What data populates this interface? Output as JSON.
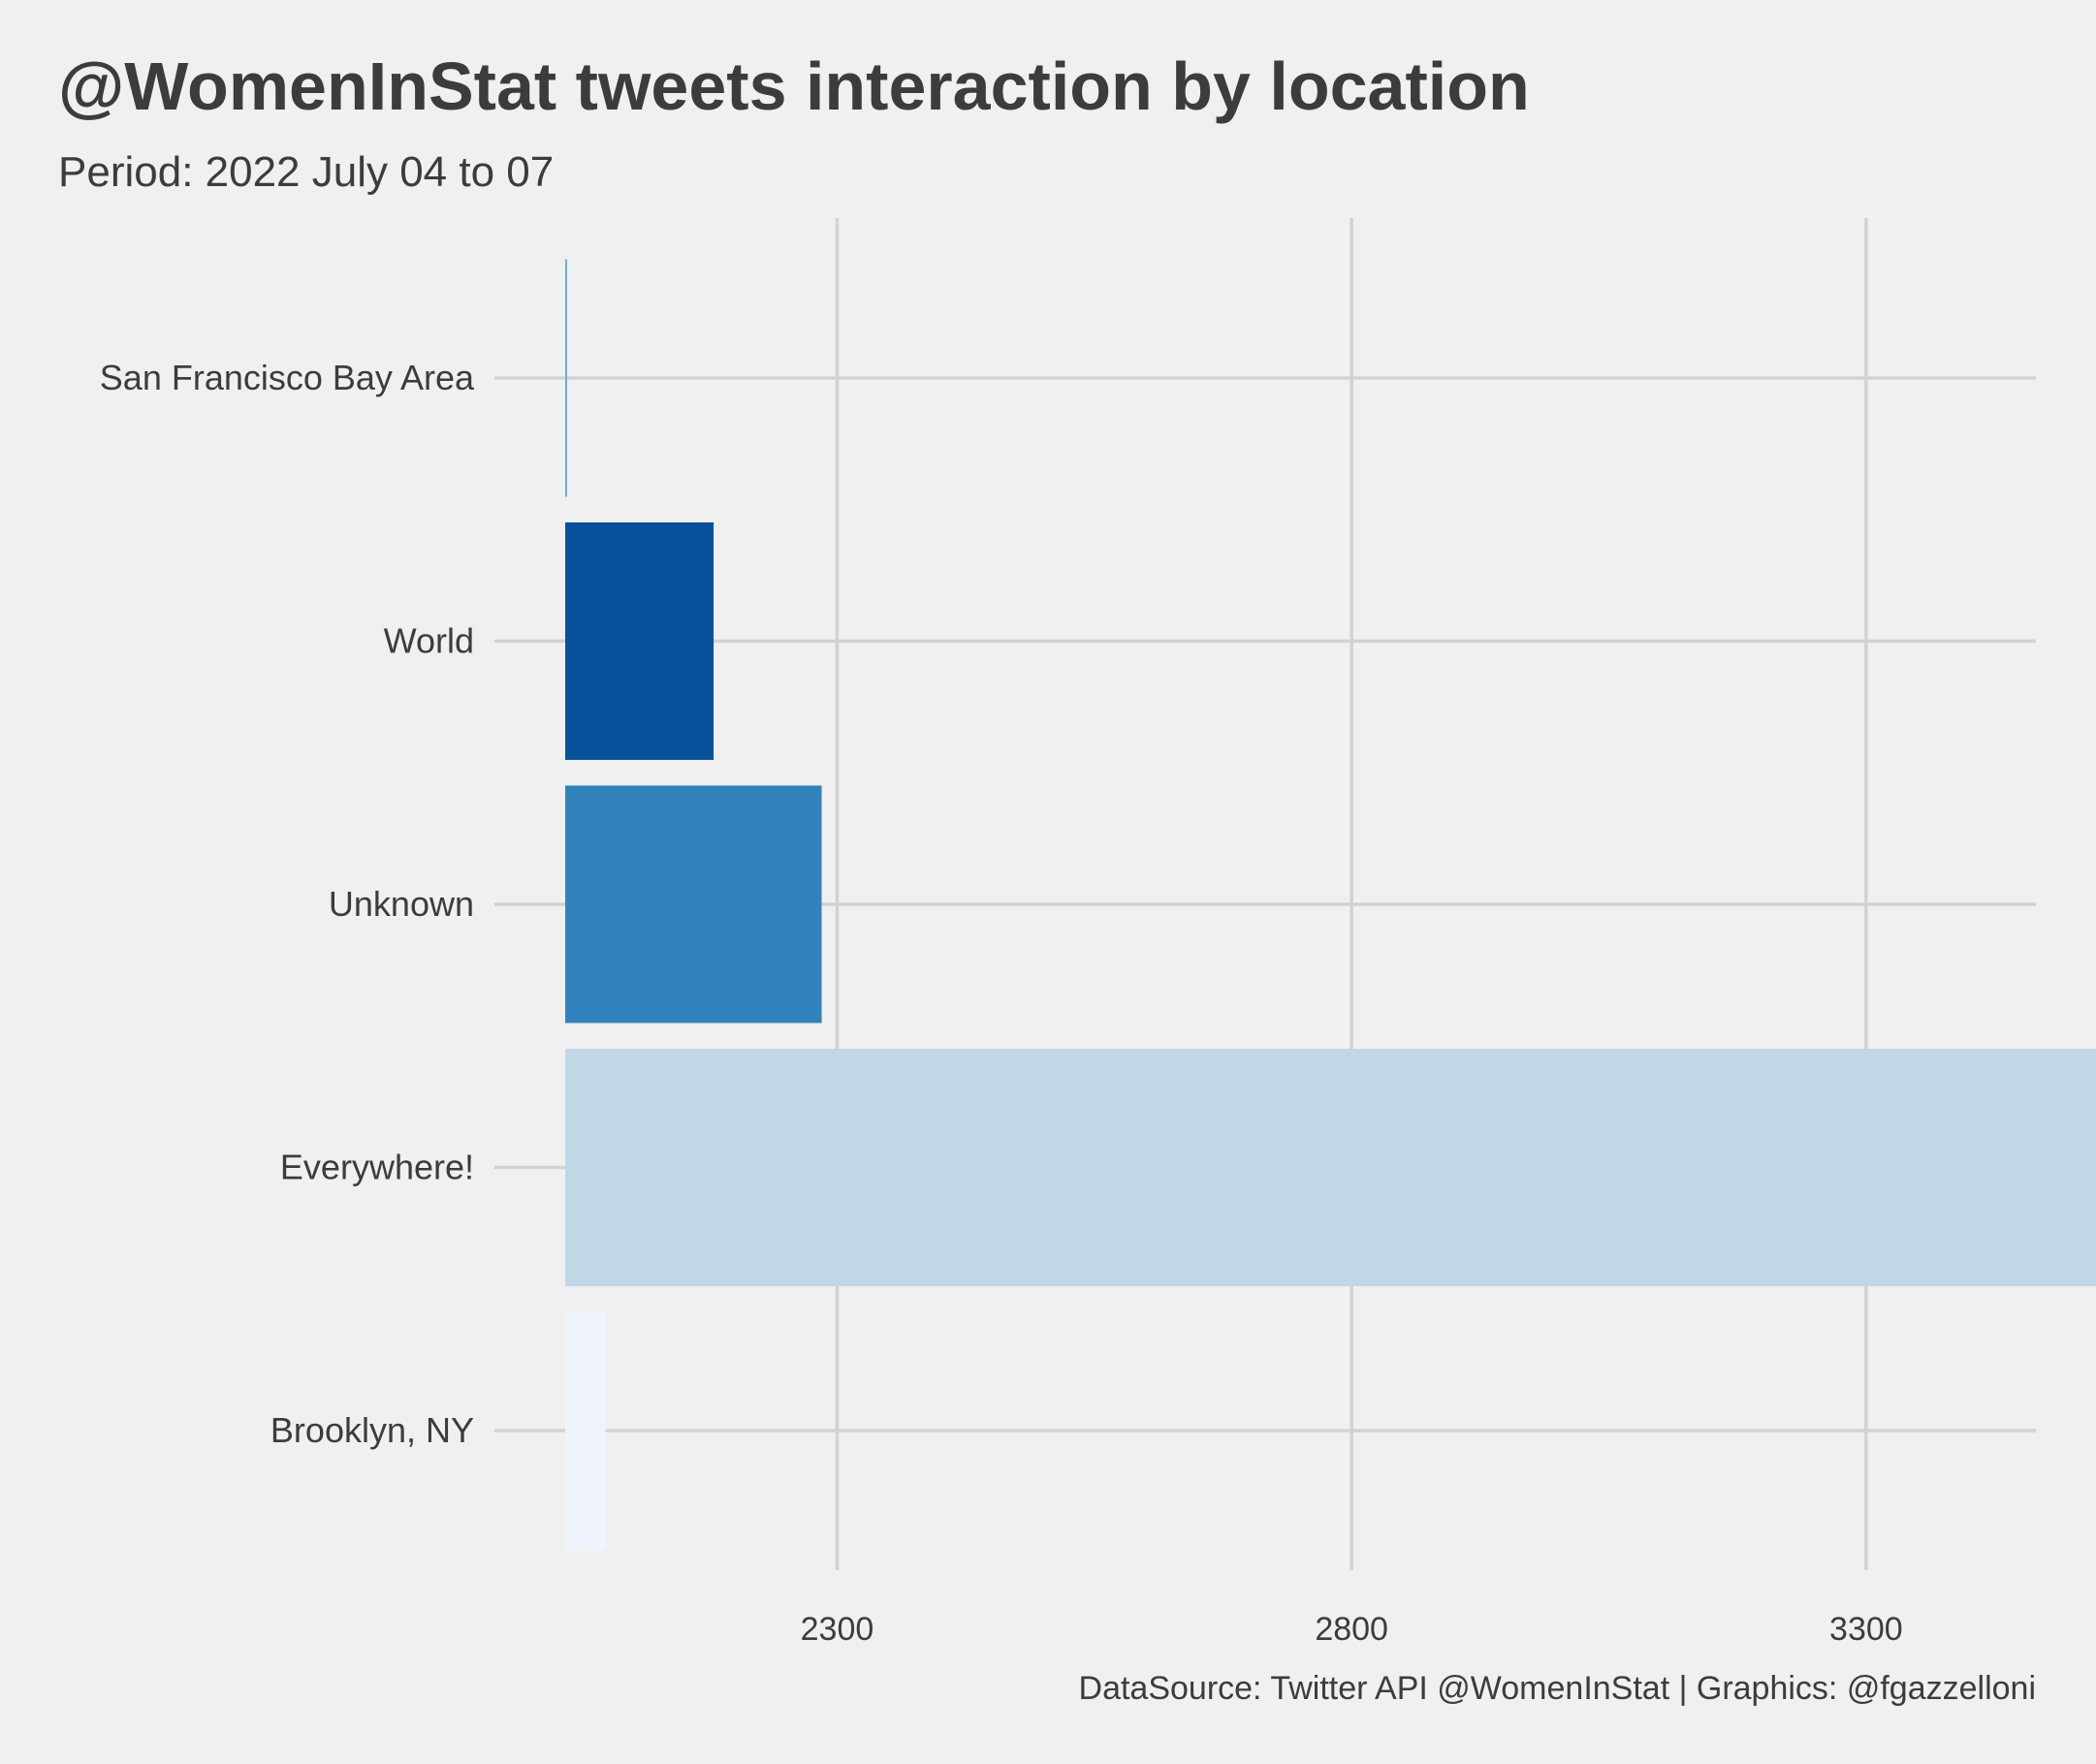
{
  "chart_data": {
    "type": "bar",
    "orientation": "horizontal",
    "title": "@WomenInStat tweets interaction by location",
    "subtitle": "Period: 2022 July 04 to 07",
    "caption": "DataSource: Twitter API @WomenInStat | Graphics: @fgazzelloni",
    "xlabel": "",
    "ylabel": "",
    "categories": [
      "San Francisco Bay Area",
      "World",
      "Unknown",
      "Everywhere!",
      "Brooklyn, NY"
    ],
    "values": [
      2022,
      2180,
      2285,
      3706,
      2075
    ],
    "colors": [
      "#6baed6",
      "#08519c",
      "#3182bd",
      "#c0d7e6",
      "#eff3fb"
    ],
    "xlim": [
      1967,
      3465
    ],
    "x_axis_start": 1967,
    "xticks": [
      2300,
      2800,
      3300
    ],
    "grid": true,
    "legend": "none"
  }
}
